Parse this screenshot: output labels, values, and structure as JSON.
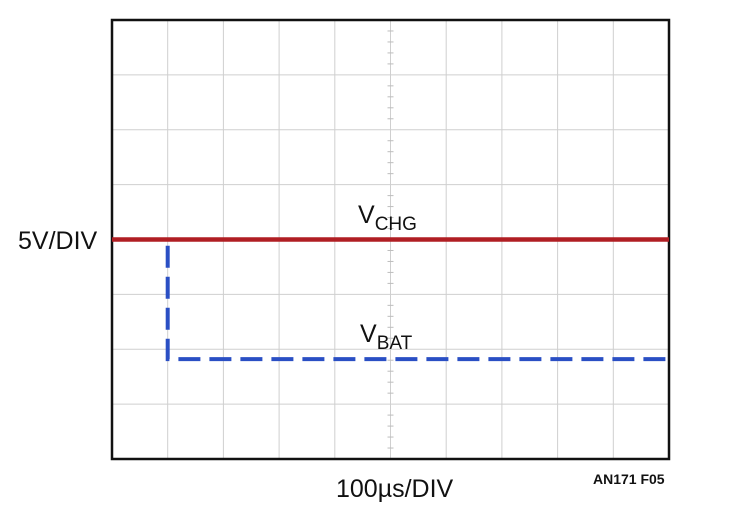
{
  "chart_data": {
    "type": "line",
    "x_label": "100µs/DIV",
    "y_label": "5V/DIV",
    "figure_id": "AN171 F05",
    "grid": true,
    "x_divisions": 10,
    "y_divisions": 8,
    "xlim": [
      0,
      10
    ],
    "ylim": [
      0,
      8
    ],
    "series": [
      {
        "label_main": "V",
        "label_sub": "CHG",
        "color": "#b01e23",
        "style": "solid",
        "points": [
          [
            0,
            4
          ],
          [
            10,
            4
          ]
        ]
      },
      {
        "label_main": "V",
        "label_sub": "BAT",
        "color": "#2a4fc4",
        "style": "dashed",
        "points": [
          [
            0,
            4
          ],
          [
            1,
            4
          ],
          [
            1,
            1.82
          ],
          [
            10,
            1.82
          ]
        ]
      }
    ]
  }
}
